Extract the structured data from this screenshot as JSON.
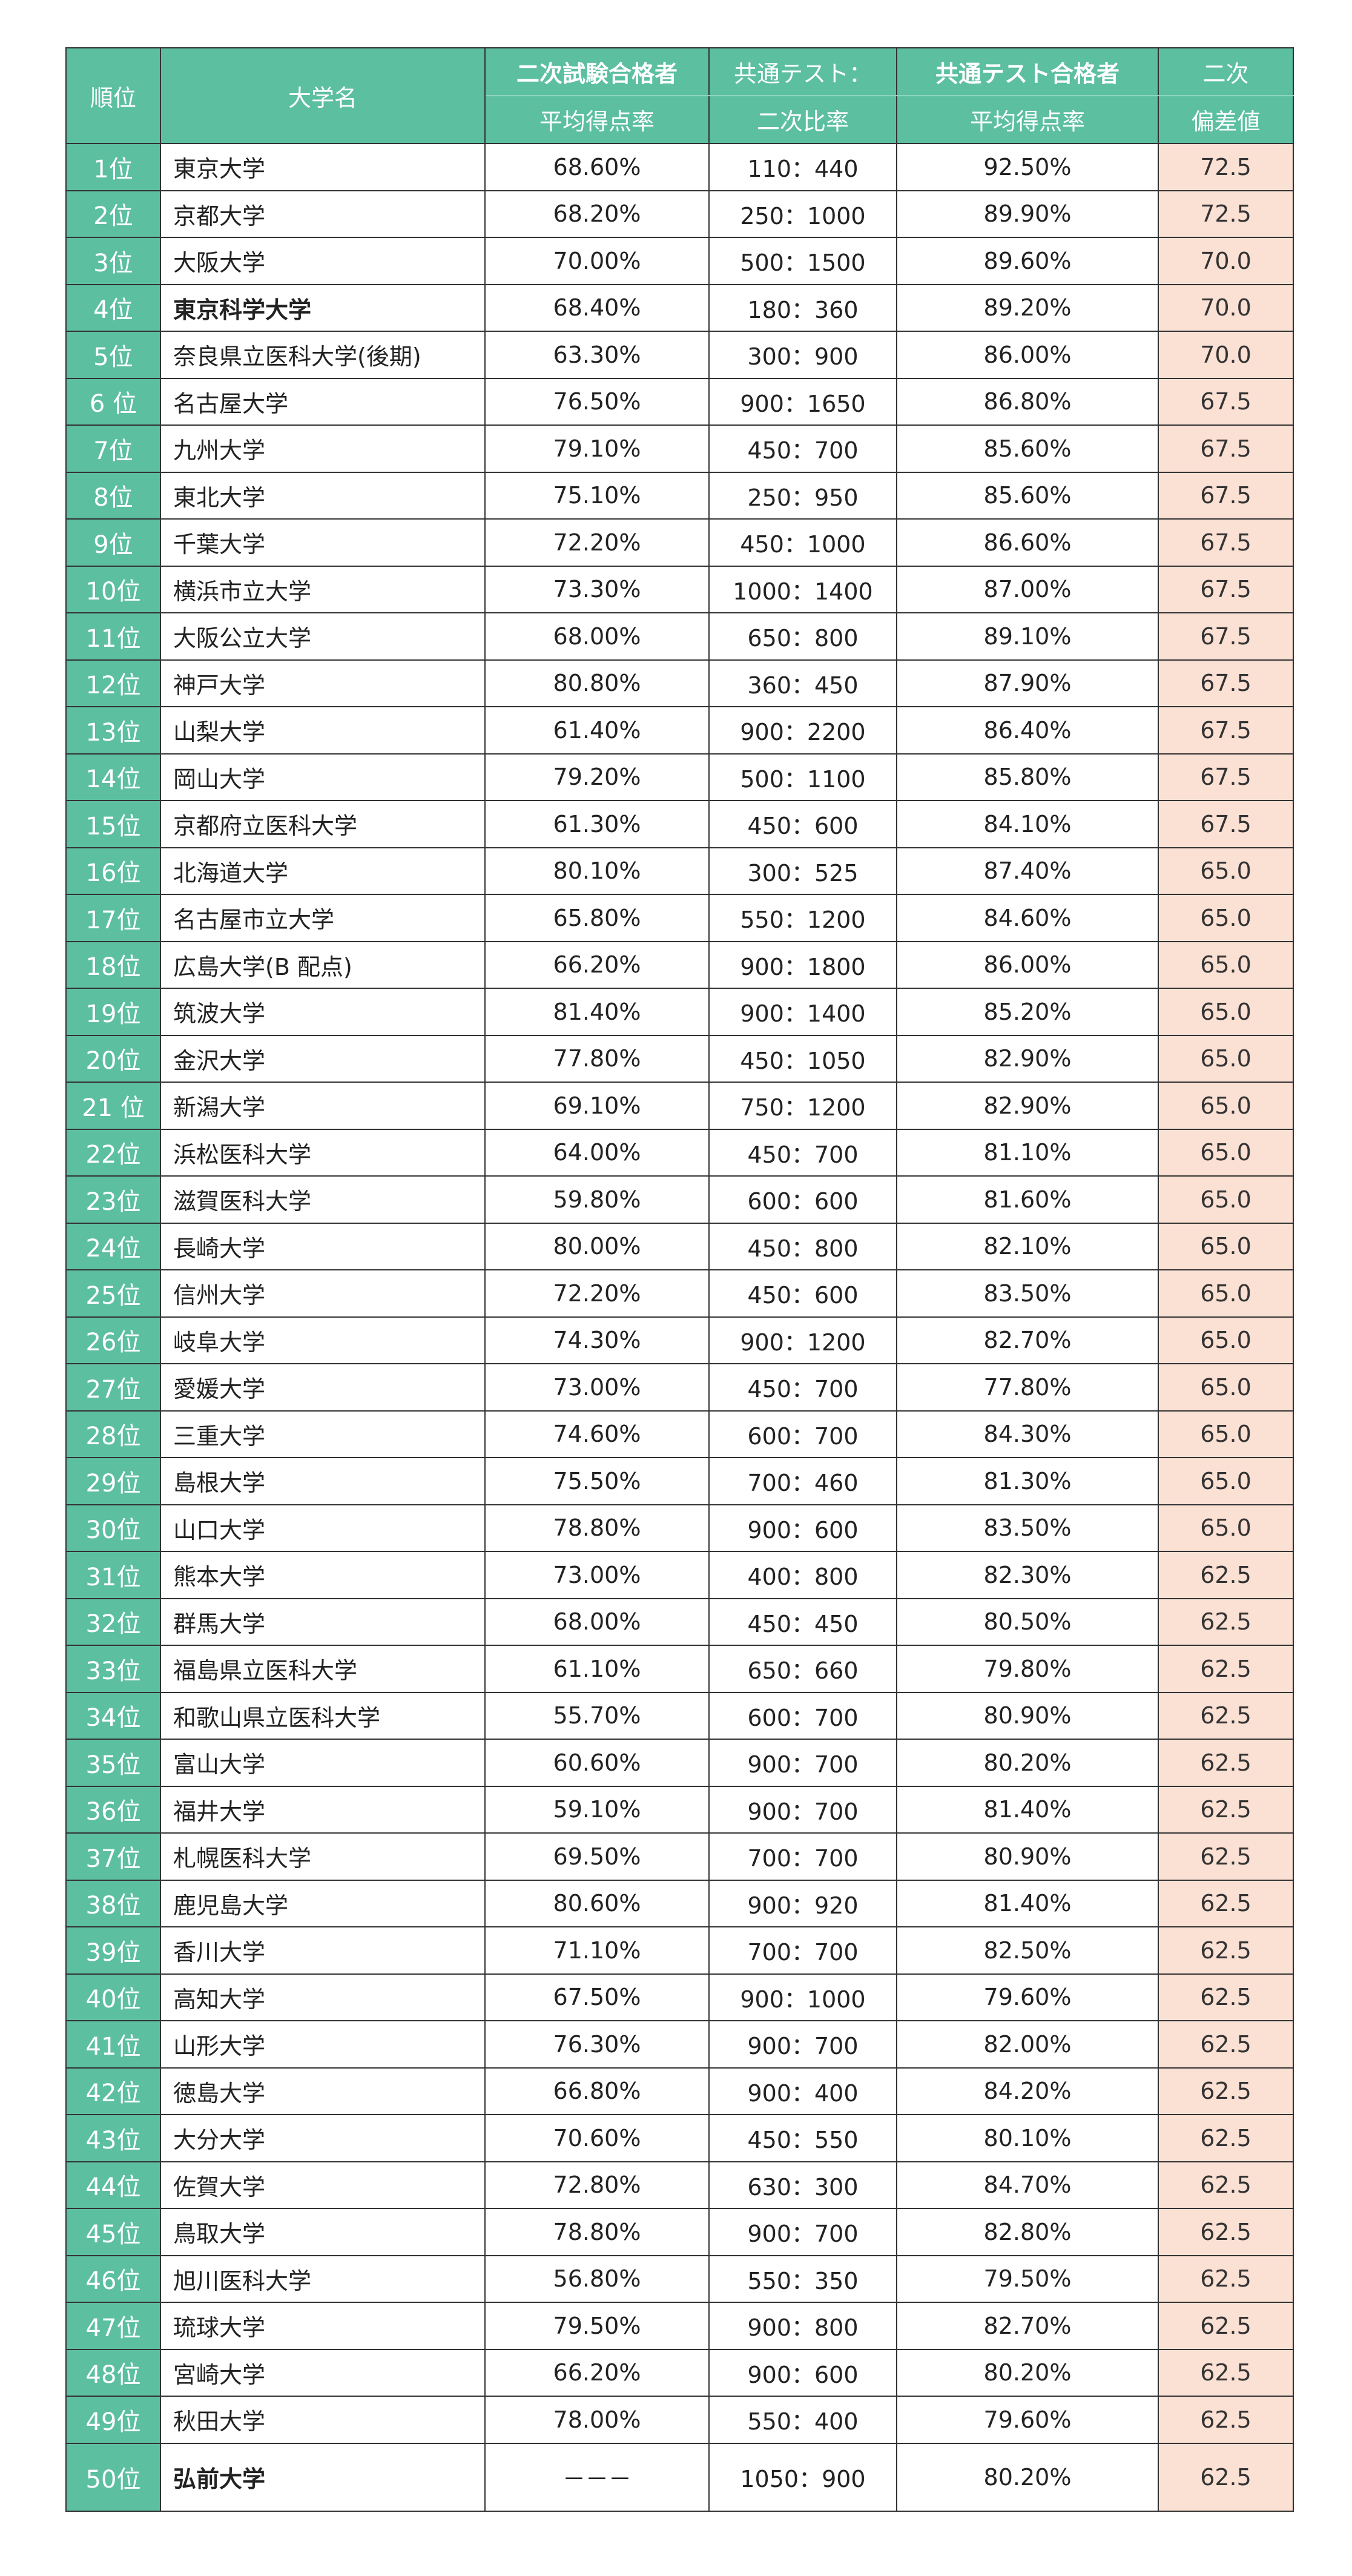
{
  "header": {
    "rank": "順位",
    "name": "大学名",
    "second_exam_line1": "二次試験合格者",
    "second_exam_line2": "平均得点率",
    "ratio_line1": "共通テスト：",
    "ratio_line2": "二次比率",
    "common_test_line1": "共通テスト合格者",
    "common_test_line2": "平均得点率",
    "deviation_line1": "二次",
    "deviation_line2": "偏差値"
  },
  "rows": [
    {
      "rank": "1位",
      "name": "東京大学",
      "second": "68.60%",
      "ratio": "110：440",
      "common": "92.50%",
      "dev": "72.5"
    },
    {
      "rank": "2位",
      "name": "京都大学",
      "second": "68.20%",
      "ratio": "250：1000",
      "common": "89.90%",
      "dev": "72.5"
    },
    {
      "rank": "3位",
      "name": "大阪大学",
      "second": "70.00%",
      "ratio": "500：1500",
      "common": "89.60%",
      "dev": "70.0"
    },
    {
      "rank": "4位",
      "name": "東京科学大学",
      "second": "68.40%",
      "ratio": "180：360",
      "common": "89.20%",
      "dev": "70.0",
      "bold": true
    },
    {
      "rank": "5位",
      "name": "奈良県立医科大学(後期)",
      "second": "63.30%",
      "ratio": "300：900",
      "common": "86.00%",
      "dev": "70.0"
    },
    {
      "rank": "6 位",
      "name": "名古屋大学",
      "second": "76.50%",
      "ratio": "900：1650",
      "common": "86.80%",
      "dev": "67.5"
    },
    {
      "rank": "7位",
      "name": "九州大学",
      "second": "79.10%",
      "ratio": "450：700",
      "common": "85.60%",
      "dev": "67.5"
    },
    {
      "rank": "8位",
      "name": "東北大学",
      "second": "75.10%",
      "ratio": "250：950",
      "common": "85.60%",
      "dev": "67.5"
    },
    {
      "rank": "9位",
      "name": "千葉大学",
      "second": "72.20%",
      "ratio": "450：1000",
      "common": "86.60%",
      "dev": "67.5"
    },
    {
      "rank": "10位",
      "name": "横浜市立大学",
      "second": "73.30%",
      "ratio": "1000：1400",
      "common": "87.00%",
      "dev": "67.5"
    },
    {
      "rank": "11位",
      "name": "大阪公立大学",
      "second": "68.00%",
      "ratio": "650：800",
      "common": "89.10%",
      "dev": "67.5"
    },
    {
      "rank": "12位",
      "name": "神戸大学",
      "second": "80.80%",
      "ratio": "360：450",
      "common": "87.90%",
      "dev": "67.5"
    },
    {
      "rank": "13位",
      "name": "山梨大学",
      "second": "61.40%",
      "ratio": "900：2200",
      "common": "86.40%",
      "dev": "67.5"
    },
    {
      "rank": "14位",
      "name": "岡山大学",
      "second": "79.20%",
      "ratio": "500：1100",
      "common": "85.80%",
      "dev": "67.5"
    },
    {
      "rank": "15位",
      "name": "京都府立医科大学",
      "second": "61.30%",
      "ratio": "450：600",
      "common": "84.10%",
      "dev": "67.5"
    },
    {
      "rank": "16位",
      "name": "北海道大学",
      "second": "80.10%",
      "ratio": "300：525",
      "common": "87.40%",
      "dev": "65.0"
    },
    {
      "rank": "17位",
      "name": "名古屋市立大学",
      "second": "65.80%",
      "ratio": "550：1200",
      "common": "84.60%",
      "dev": "65.0"
    },
    {
      "rank": "18位",
      "name": "広島大学(B 配点)",
      "second": "66.20%",
      "ratio": "900：1800",
      "common": "86.00%",
      "dev": "65.0"
    },
    {
      "rank": "19位",
      "name": "筑波大学",
      "second": "81.40%",
      "ratio": "900：1400",
      "common": "85.20%",
      "dev": "65.0"
    },
    {
      "rank": "20位",
      "name": "金沢大学",
      "second": "77.80%",
      "ratio": "450：1050",
      "common": "82.90%",
      "dev": "65.0"
    },
    {
      "rank": "21 位",
      "name": "新潟大学",
      "second": "69.10%",
      "ratio": "750：1200",
      "common": "82.90%",
      "dev": "65.0"
    },
    {
      "rank": "22位",
      "name": "浜松医科大学",
      "second": "64.00%",
      "ratio": "450：700",
      "common": "81.10%",
      "dev": "65.0"
    },
    {
      "rank": "23位",
      "name": "滋賀医科大学",
      "second": "59.80%",
      "ratio": "600：600",
      "common": "81.60%",
      "dev": "65.0"
    },
    {
      "rank": "24位",
      "name": "長崎大学",
      "second": "80.00%",
      "ratio": "450：800",
      "common": "82.10%",
      "dev": "65.0"
    },
    {
      "rank": "25位",
      "name": "信州大学",
      "second": "72.20%",
      "ratio": "450：600",
      "common": "83.50%",
      "dev": "65.0"
    },
    {
      "rank": "26位",
      "name": "岐阜大学",
      "second": "74.30%",
      "ratio": "900：1200",
      "common": "82.70%",
      "dev": "65.0"
    },
    {
      "rank": "27位",
      "name": "愛媛大学",
      "second": "73.00%",
      "ratio": "450：700",
      "common": "77.80%",
      "dev": "65.0"
    },
    {
      "rank": "28位",
      "name": "三重大学",
      "second": "74.60%",
      "ratio": "600：700",
      "common": "84.30%",
      "dev": "65.0"
    },
    {
      "rank": "29位",
      "name": "島根大学",
      "second": "75.50%",
      "ratio": "700：460",
      "common": "81.30%",
      "dev": "65.0"
    },
    {
      "rank": "30位",
      "name": "山口大学",
      "second": "78.80%",
      "ratio": "900：600",
      "common": "83.50%",
      "dev": "65.0"
    },
    {
      "rank": "31位",
      "name": "熊本大学",
      "second": "73.00%",
      "ratio": "400：800",
      "common": "82.30%",
      "dev": "62.5"
    },
    {
      "rank": "32位",
      "name": "群馬大学",
      "second": "68.00%",
      "ratio": "450：450",
      "common": "80.50%",
      "dev": "62.5"
    },
    {
      "rank": "33位",
      "name": "福島県立医科大学",
      "second": "61.10%",
      "ratio": "650：660",
      "common": "79.80%",
      "dev": "62.5"
    },
    {
      "rank": "34位",
      "name": "和歌山県立医科大学",
      "second": "55.70%",
      "ratio": "600：700",
      "common": "80.90%",
      "dev": "62.5"
    },
    {
      "rank": "35位",
      "name": "富山大学",
      "second": "60.60%",
      "ratio": "900：700",
      "common": "80.20%",
      "dev": "62.5"
    },
    {
      "rank": "36位",
      "name": "福井大学",
      "second": "59.10%",
      "ratio": "900：700",
      "common": "81.40%",
      "dev": "62.5"
    },
    {
      "rank": "37位",
      "name": "札幌医科大学",
      "second": "69.50%",
      "ratio": "700：700",
      "common": "80.90%",
      "dev": "62.5"
    },
    {
      "rank": "38位",
      "name": "鹿児島大学",
      "second": "80.60%",
      "ratio": "900：920",
      "common": "81.40%",
      "dev": "62.5"
    },
    {
      "rank": "39位",
      "name": "香川大学",
      "second": "71.10%",
      "ratio": "700：700",
      "common": "82.50%",
      "dev": "62.5"
    },
    {
      "rank": "40位",
      "name": "高知大学",
      "second": "67.50%",
      "ratio": "900：1000",
      "common": "79.60%",
      "dev": "62.5"
    },
    {
      "rank": "41位",
      "name": "山形大学",
      "second": "76.30%",
      "ratio": "900：700",
      "common": "82.00%",
      "dev": "62.5"
    },
    {
      "rank": "42位",
      "name": "徳島大学",
      "second": "66.80%",
      "ratio": "900：400",
      "common": "84.20%",
      "dev": "62.5"
    },
    {
      "rank": "43位",
      "name": "大分大学",
      "second": "70.60%",
      "ratio": "450：550",
      "common": "80.10%",
      "dev": "62.5"
    },
    {
      "rank": "44位",
      "name": "佐賀大学",
      "second": "72.80%",
      "ratio": "630：300",
      "common": "84.70%",
      "dev": "62.5"
    },
    {
      "rank": "45位",
      "name": "鳥取大学",
      "second": "78.80%",
      "ratio": "900：700",
      "common": "82.80%",
      "dev": "62.5"
    },
    {
      "rank": "46位",
      "name": "旭川医科大学",
      "second": "56.80%",
      "ratio": "550：350",
      "common": "79.50%",
      "dev": "62.5"
    },
    {
      "rank": "47位",
      "name": "琉球大学",
      "second": "79.50%",
      "ratio": "900：800",
      "common": "82.70%",
      "dev": "62.5"
    },
    {
      "rank": "48位",
      "name": "宮崎大学",
      "second": "66.20%",
      "ratio": "900：600",
      "common": "80.20%",
      "dev": "62.5"
    },
    {
      "rank": "49位",
      "name": "秋田大学",
      "second": "78.00%",
      "ratio": "550：400",
      "common": "79.60%",
      "dev": "62.5"
    },
    {
      "rank": "50位",
      "name": "弘前大学",
      "second": "－－－",
      "ratio": "1050：900",
      "common": "80.20%",
      "dev": "62.5",
      "bold": true
    }
  ]
}
